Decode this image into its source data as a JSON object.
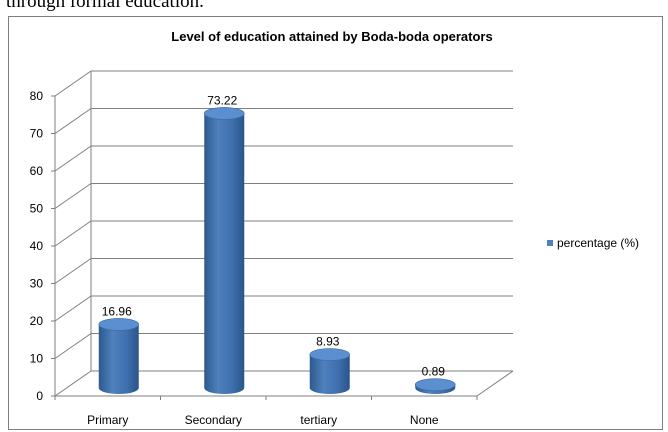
{
  "document": {
    "text": "through formal education."
  },
  "chart_data": {
    "type": "bar",
    "title": "Level of education attained by Boda-boda operators",
    "categories": [
      "Primary",
      "Secondary",
      "tertiary",
      "None"
    ],
    "series": [
      {
        "name": "percentage (%)",
        "values": [
          16.96,
          73.22,
          8.93,
          0.89
        ]
      }
    ],
    "data_labels": [
      "16.96",
      "73.22",
      "8.93",
      "0.89"
    ],
    "y_ticks": [
      0,
      10,
      20,
      30,
      40,
      50,
      60,
      70,
      80
    ],
    "ylim": [
      0,
      80
    ],
    "grid": true,
    "legend": "right",
    "style": "3d-cylinder",
    "colors": {
      "bar": "#4f81bd",
      "bar_dark": "#2c5a8f",
      "bar_top": "#5b8fd0",
      "grid": "#7f7f7f"
    }
  }
}
